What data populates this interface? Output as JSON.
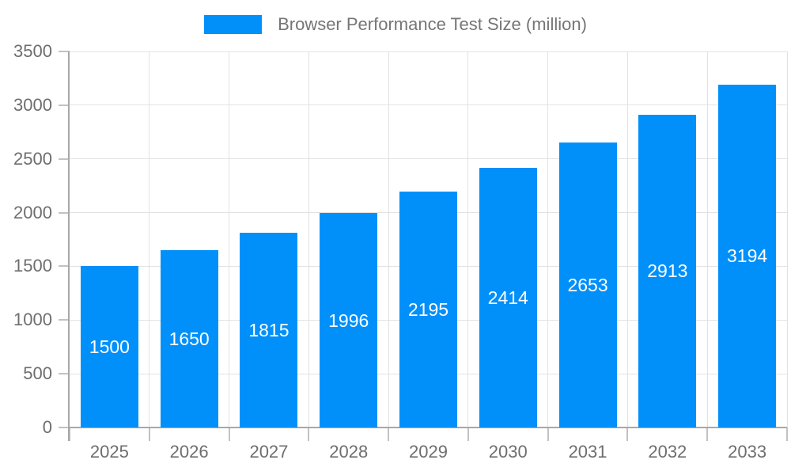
{
  "chart_data": {
    "type": "bar",
    "title": "Browser Performance Test Size (million)",
    "categories": [
      "2025",
      "2026",
      "2027",
      "2028",
      "2029",
      "2030",
      "2031",
      "2032",
      "2033"
    ],
    "series": [
      {
        "name": "Browser Performance Test Size (million)",
        "values": [
          1500,
          1650,
          1815,
          1996,
          2195,
          2414,
          2653,
          2913,
          3194
        ]
      }
    ],
    "bar_value_labels": [
      "1500",
      "1650",
      "1815",
      "1996",
      "2195",
      "2414",
      "2653",
      "2913",
      "3194"
    ],
    "xlabel": "",
    "ylabel": "",
    "ylim": [
      0,
      3500
    ],
    "ytick_step": 500,
    "ytick_labels": [
      "0",
      "500",
      "1000",
      "1500",
      "2000",
      "2500",
      "3000",
      "3500"
    ],
    "legend_position": "top-center",
    "grid": true
  },
  "colors": {
    "bar": "#0190fa",
    "grid": "#e2e2e2",
    "axis": "#a8a8a8",
    "tick": "#c2c2c2",
    "legend_text": "#757575",
    "axis_text": "#6e6e6e",
    "bar_label_text": "#ffffff",
    "background": "#ffffff"
  }
}
